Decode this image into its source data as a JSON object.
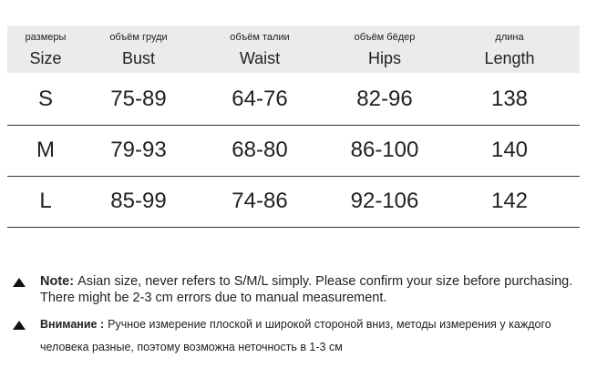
{
  "table": {
    "header": [
      {
        "ru": "размеры",
        "en": "Size"
      },
      {
        "ru": "объём груди",
        "en": "Bust"
      },
      {
        "ru": "объём талии",
        "en": "Waist"
      },
      {
        "ru": "объём бёдер",
        "en": "Hips"
      },
      {
        "ru": "длина",
        "en": "Length"
      }
    ],
    "rows": [
      [
        "S",
        "75-89",
        "64-76",
        "82-96",
        "138"
      ],
      [
        "M",
        "79-93",
        "68-80",
        "86-100",
        "140"
      ],
      [
        "L",
        "85-99",
        "74-86",
        "92-106",
        "142"
      ]
    ]
  },
  "notes": [
    {
      "label": "Note:",
      "text": "Asian size, never refers to S/M/L simply. Please confirm your size before purchasing. There might be 2-3 cm errors due to manual measurement."
    },
    {
      "label": "Внимание :",
      "text": "Ручное измерение плоской и широкой стороной вниз, методы измерения у каждого человека разные, поэтому возможна неточность в 1-3 см"
    }
  ]
}
